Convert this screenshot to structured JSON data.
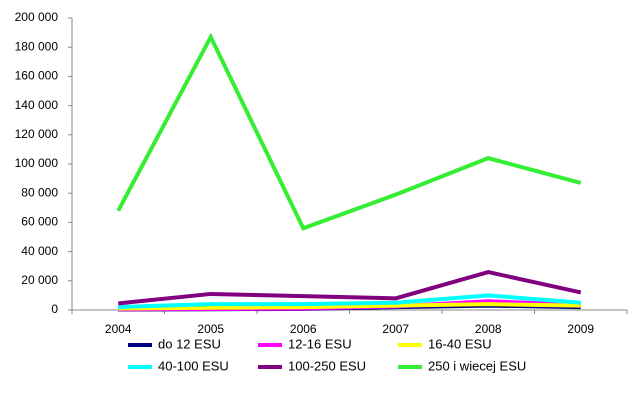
{
  "chart_data": {
    "type": "line",
    "categories": [
      "2004",
      "2005",
      "2006",
      "2007",
      "2008",
      "2009"
    ],
    "series": [
      {
        "name": "do 12 ESU",
        "color": "#000080",
        "values": [
          300,
          500,
          800,
          2000,
          3000,
          2000
        ]
      },
      {
        "name": "12-16 ESU",
        "color": "#ff00ff",
        "values": [
          500,
          800,
          1000,
          2500,
          6000,
          3500
        ]
      },
      {
        "name": "16-40 ESU",
        "color": "#ffff00",
        "values": [
          1000,
          1500,
          2000,
          3000,
          4000,
          3000
        ]
      },
      {
        "name": "40-100 ESU",
        "color": "#00ffff",
        "values": [
          2000,
          4000,
          4000,
          5000,
          10000,
          5000
        ]
      },
      {
        "name": "100-250 ESU",
        "color": "#800080",
        "values": [
          4500,
          11000,
          9500,
          8000,
          26000,
          12000
        ]
      },
      {
        "name": "250 i wiecej ESU",
        "color": "#33ee33",
        "values": [
          68000,
          187000,
          56000,
          79000,
          104000,
          87000
        ]
      }
    ],
    "ylim": [
      0,
      200000
    ],
    "yticks": [
      {
        "value": 0,
        "label": "0"
      },
      {
        "value": 20000,
        "label": "20 000"
      },
      {
        "value": 40000,
        "label": "40 000"
      },
      {
        "value": 60000,
        "label": "60 000"
      },
      {
        "value": 80000,
        "label": "80 000"
      },
      {
        "value": 100000,
        "label": "100 000"
      },
      {
        "value": 120000,
        "label": "120 000"
      },
      {
        "value": 140000,
        "label": "140 000"
      },
      {
        "value": 160000,
        "label": "160 000"
      },
      {
        "value": 180000,
        "label": "180 000"
      },
      {
        "value": 200000,
        "label": "200 000"
      }
    ],
    "grid": false
  }
}
